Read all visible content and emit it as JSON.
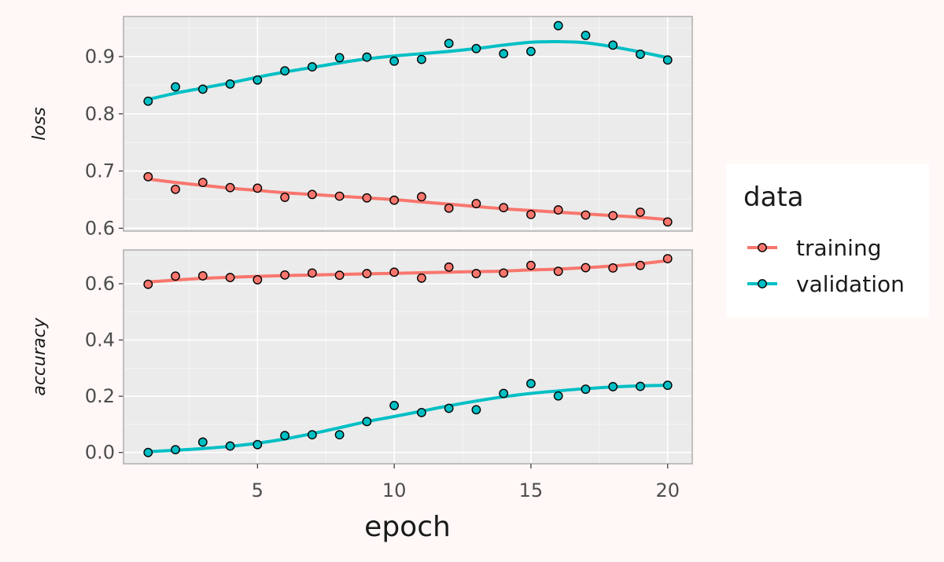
{
  "chart_data": {
    "type": "line",
    "xlabel": "epoch",
    "x": [
      1,
      2,
      3,
      4,
      5,
      6,
      7,
      8,
      9,
      10,
      11,
      12,
      13,
      14,
      15,
      16,
      17,
      18,
      19,
      20
    ],
    "x_ticks": [
      5,
      10,
      15,
      20
    ],
    "xlim": [
      0.1,
      20.9
    ],
    "legend": {
      "title": "data",
      "position": "right"
    },
    "series_colors": {
      "training": "#f8766d",
      "validation": "#00bfc4"
    },
    "panels": [
      {
        "strip": "loss",
        "ylim": [
          0.595,
          0.97
        ],
        "y_ticks": [
          0.6,
          0.7,
          0.8,
          0.9
        ],
        "y_tick_labels": [
          "0.6",
          "0.7",
          "0.8",
          "0.9"
        ],
        "series": [
          {
            "name": "training",
            "points": [
              0.69,
              0.668,
              0.68,
              0.671,
              0.67,
              0.654,
              0.659,
              0.656,
              0.653,
              0.649,
              0.655,
              0.635,
              0.643,
              0.636,
              0.624,
              0.632,
              0.623,
              0.622,
              0.628,
              0.611
            ],
            "smooth": [
              0.686,
              0.68,
              0.675,
              0.67,
              0.666,
              0.662,
              0.659,
              0.656,
              0.653,
              0.65,
              0.646,
              0.642,
              0.638,
              0.634,
              0.631,
              0.628,
              0.625,
              0.622,
              0.619,
              0.615
            ]
          },
          {
            "name": "validation",
            "points": [
              0.822,
              0.847,
              0.843,
              0.852,
              0.859,
              0.875,
              0.882,
              0.898,
              0.899,
              0.892,
              0.895,
              0.923,
              0.914,
              0.905,
              0.909,
              0.954,
              0.937,
              0.92,
              0.904,
              0.894
            ],
            "smooth": [
              0.825,
              0.836,
              0.845,
              0.854,
              0.864,
              0.873,
              0.881,
              0.889,
              0.896,
              0.901,
              0.905,
              0.909,
              0.914,
              0.92,
              0.925,
              0.926,
              0.924,
              0.917,
              0.908,
              0.898
            ]
          }
        ]
      },
      {
        "strip": "accuracy",
        "ylim": [
          -0.04,
          0.72
        ],
        "y_ticks": [
          0.0,
          0.2,
          0.4,
          0.6
        ],
        "y_tick_labels": [
          "0.0",
          "0.2",
          "0.4",
          "0.6"
        ],
        "series": [
          {
            "name": "training",
            "points": [
              0.598,
              0.627,
              0.628,
              0.622,
              0.614,
              0.631,
              0.638,
              0.63,
              0.636,
              0.641,
              0.62,
              0.659,
              0.636,
              0.638,
              0.665,
              0.644,
              0.657,
              0.656,
              0.665,
              0.689
            ],
            "smooth": [
              0.606,
              0.613,
              0.619,
              0.623,
              0.626,
              0.629,
              0.631,
              0.633,
              0.635,
              0.637,
              0.639,
              0.641,
              0.643,
              0.645,
              0.649,
              0.652,
              0.657,
              0.663,
              0.671,
              0.682
            ]
          },
          {
            "name": "validation",
            "points": [
              0.0,
              0.01,
              0.037,
              0.023,
              0.028,
              0.06,
              0.063,
              0.063,
              0.11,
              0.167,
              0.142,
              0.157,
              0.152,
              0.21,
              0.245,
              0.201,
              0.225,
              0.234,
              0.235,
              0.239
            ],
            "smooth": [
              0.003,
              0.008,
              0.014,
              0.022,
              0.033,
              0.048,
              0.067,
              0.088,
              0.11,
              0.128,
              0.147,
              0.166,
              0.183,
              0.198,
              0.21,
              0.219,
              0.227,
              0.233,
              0.237,
              0.239
            ]
          }
        ]
      }
    ]
  }
}
